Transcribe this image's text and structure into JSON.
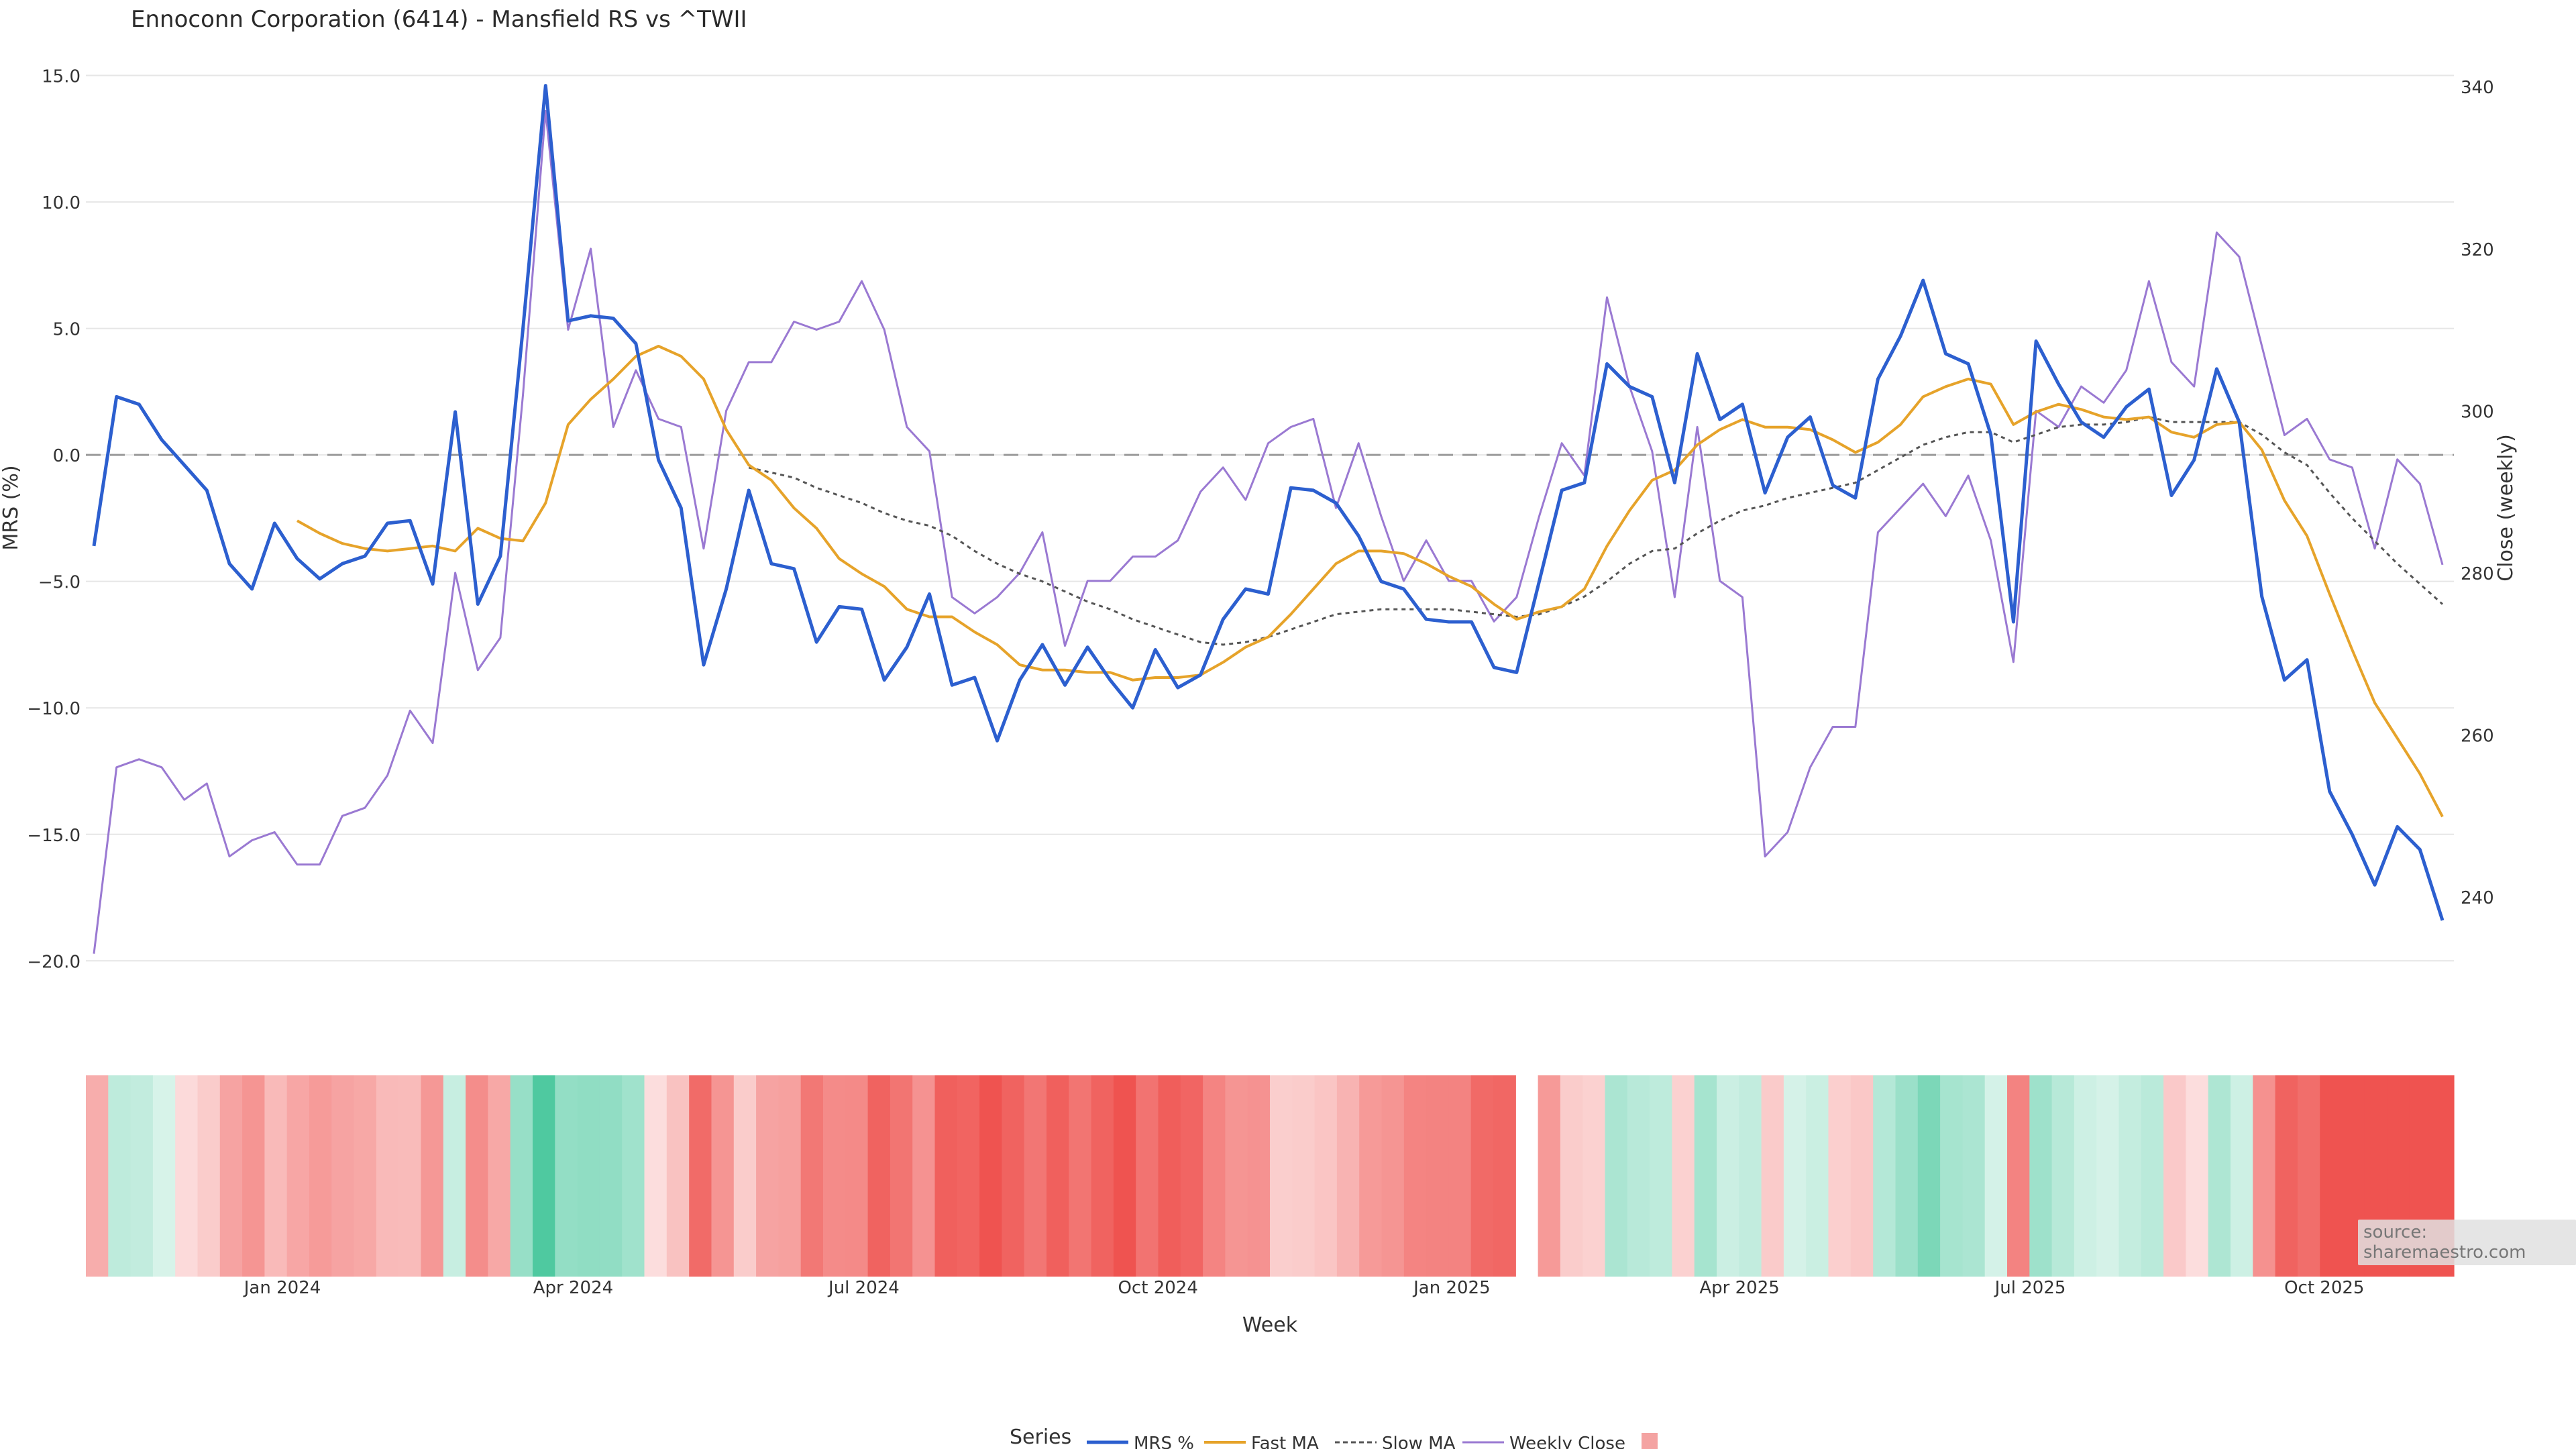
{
  "title": "Ennoconn Corporation (6414) - Mansfield RS vs ^TWII",
  "source_text": "source: sharemaestro.com",
  "colors": {
    "mrs": "#2c5fcf",
    "fast": "#e6a32a",
    "slow": "#555555",
    "close": "#9a79d2",
    "zero": "#9a9a9a",
    "grid": "#e6e6e6",
    "neg": "#ef5350",
    "pos": "#4fc9a0"
  },
  "legend": {
    "title": "Series",
    "items": [
      "MRS %",
      "Fast MA",
      "Slow MA",
      "Weekly Close",
      ""
    ]
  },
  "chart_data": {
    "type": "line",
    "title": "Ennoconn Corporation (6414) - Mansfield RS vs ^TWII",
    "xlabel": "Week",
    "ylabel_left": "MRS (%)",
    "ylabel_right": "Close (weekly)",
    "ylim_left": [
      -21,
      15.2
    ],
    "ylim_right": [
      229,
      342
    ],
    "y_ticks_left": [
      15,
      10,
      5,
      0,
      -5,
      -10,
      -15,
      -20
    ],
    "y_tick_labels_left": [
      "15.0",
      "10.0",
      "5.0",
      "0.0",
      "−5.0",
      "−10.0",
      "−15.0",
      "−20.0"
    ],
    "y_ticks_right": [
      340,
      320,
      300,
      280,
      260,
      240
    ],
    "y_tick_labels_right": [
      "340",
      "320",
      "300",
      "280",
      "260",
      "240"
    ],
    "x_start_date": "2023-11-03",
    "x_end_date": "2025-11-07",
    "x_ticks": [
      "2024-01-01",
      "2024-04-01",
      "2024-07-01",
      "2024-10-01",
      "2025-01-01",
      "2025-04-01",
      "2025-07-01",
      "2025-10-01"
    ],
    "x_tick_labels": [
      "Jan 2024",
      "Apr 2024",
      "Jul 2024",
      "Oct 2024",
      "Jan 2025",
      "Apr 2025",
      "Jul 2025",
      "Oct 2025"
    ],
    "grid": true,
    "legend_position": "bottom",
    "series": [
      {
        "name": "MRS %",
        "line": "solid",
        "axis": "left",
        "values": [
          -3.6,
          2.3,
          2.0,
          0.6,
          -0.4,
          -1.4,
          -4.3,
          -5.3,
          -2.7,
          -4.1,
          -4.9,
          -4.3,
          -4.0,
          -2.7,
          -2.6,
          -5.1,
          1.7,
          -5.9,
          -4.0,
          5.0,
          14.6,
          5.3,
          5.5,
          5.4,
          4.4,
          -0.2,
          -2.1,
          -8.3,
          -5.3,
          -1.4,
          -4.3,
          -4.5,
          -7.4,
          -6.0,
          -6.1,
          -8.9,
          -7.6,
          -5.5,
          -9.1,
          -8.8,
          -11.3,
          -8.9,
          -7.5,
          -9.1,
          -7.6,
          -8.9,
          -10.0,
          -7.7,
          -9.2,
          -8.7,
          -6.5,
          -5.3,
          -5.5,
          -1.3,
          -1.4,
          -1.9,
          -3.2,
          -5.0,
          -5.3,
          -6.5,
          -6.6,
          -6.6,
          -8.4,
          -8.6,
          -5.0,
          -1.4,
          -1.1,
          3.6,
          2.7,
          2.3,
          -1.1,
          4.0,
          1.4,
          2.0,
          -1.5,
          0.7,
          1.5,
          -1.2,
          -1.7,
          3.0,
          4.7,
          6.9,
          4.0,
          3.6,
          0.8,
          -6.6,
          4.5,
          2.8,
          1.3,
          0.7,
          1.9,
          2.6,
          -1.6,
          -0.2,
          3.4,
          1.3,
          -5.6,
          -8.9,
          -8.1,
          -13.3,
          -15.0,
          -17.0,
          -14.7,
          -15.6,
          -18.4
        ]
      },
      {
        "name": "Fast MA",
        "line": "solid",
        "axis": "left",
        "values": [
          null,
          null,
          null,
          null,
          null,
          null,
          null,
          null,
          null,
          -2.6,
          -3.1,
          -3.5,
          -3.7,
          -3.8,
          -3.7,
          -3.6,
          -3.8,
          -2.9,
          -3.3,
          -3.4,
          -1.9,
          1.2,
          2.2,
          3.0,
          3.9,
          4.3,
          3.9,
          3.0,
          1.0,
          -0.4,
          -1.0,
          -2.1,
          -2.9,
          -4.1,
          -4.7,
          -5.2,
          -6.1,
          -6.4,
          -6.4,
          -7.0,
          -7.5,
          -8.3,
          -8.5,
          -8.5,
          -8.6,
          -8.6,
          -8.9,
          -8.8,
          -8.8,
          -8.7,
          -8.2,
          -7.6,
          -7.2,
          -6.3,
          -5.3,
          -4.3,
          -3.8,
          -3.8,
          -3.9,
          -4.3,
          -4.8,
          -5.2,
          -5.9,
          -6.5,
          -6.2,
          -6.0,
          -5.3,
          -3.6,
          -2.2,
          -1.0,
          -0.6,
          0.4,
          1.0,
          1.4,
          1.1,
          1.1,
          1.0,
          0.6,
          0.1,
          0.5,
          1.2,
          2.3,
          2.7,
          3.0,
          2.8,
          1.2,
          1.7,
          2.0,
          1.8,
          1.5,
          1.4,
          1.5,
          0.9,
          0.7,
          1.2,
          1.3,
          0.2,
          -1.8,
          -3.2,
          -5.5,
          -7.7,
          -9.8,
          -11.2,
          -12.6,
          -14.3
        ]
      },
      {
        "name": "Slow MA",
        "line": "dashed",
        "axis": "left",
        "values": [
          null,
          null,
          null,
          null,
          null,
          null,
          null,
          null,
          null,
          null,
          null,
          null,
          null,
          null,
          null,
          null,
          null,
          null,
          null,
          null,
          null,
          null,
          null,
          null,
          null,
          null,
          null,
          null,
          null,
          -0.5,
          -0.7,
          -0.9,
          -1.3,
          -1.6,
          -1.9,
          -2.3,
          -2.6,
          -2.8,
          -3.2,
          -3.8,
          -4.3,
          -4.7,
          -5.0,
          -5.4,
          -5.8,
          -6.1,
          -6.5,
          -6.8,
          -7.1,
          -7.4,
          -7.5,
          -7.4,
          -7.2,
          -6.9,
          -6.6,
          -6.3,
          -6.2,
          -6.1,
          -6.1,
          -6.1,
          -6.1,
          -6.2,
          -6.3,
          -6.4,
          -6.3,
          -6.0,
          -5.6,
          -5.0,
          -4.3,
          -3.8,
          -3.7,
          -3.1,
          -2.6,
          -2.2,
          -2.0,
          -1.7,
          -1.5,
          -1.3,
          -1.1,
          -0.6,
          -0.1,
          0.4,
          0.7,
          0.9,
          0.9,
          0.5,
          0.8,
          1.1,
          1.2,
          1.2,
          1.3,
          1.5,
          1.3,
          1.3,
          1.3,
          1.3,
          0.8,
          0.1,
          -0.4,
          -1.5,
          -2.5,
          -3.4,
          -4.3,
          -5.1,
          -5.9
        ]
      },
      {
        "name": "Weekly Close",
        "line": "solid",
        "axis": "right",
        "values": [
          233,
          256,
          257,
          256,
          252,
          254,
          245,
          247,
          248,
          244,
          244,
          250,
          251,
          255,
          263,
          259,
          280,
          268,
          272,
          302,
          337,
          310,
          320,
          298,
          305,
          299,
          298,
          283,
          300,
          306,
          306,
          311,
          310,
          311,
          316,
          310,
          298,
          295,
          277,
          275,
          277,
          280,
          285,
          271,
          279,
          279,
          282,
          282,
          284,
          290,
          293,
          289,
          296,
          298,
          299,
          288,
          296,
          287,
          279,
          284,
          279,
          279,
          274,
          277,
          287,
          296,
          292,
          314,
          303,
          295,
          277,
          298,
          279,
          277,
          245,
          248,
          256,
          261,
          261,
          285,
          288,
          291,
          287,
          292,
          284,
          269,
          300,
          298,
          303,
          301,
          305,
          316,
          306,
          303,
          322,
          319,
          308,
          297,
          299,
          294,
          293,
          283,
          294,
          291,
          281
        ]
      }
    ],
    "heatmap": {
      "colorscale_negative": "#ef5350",
      "colorscale_positive": "#4fc9a0",
      "values": [
        -3.6,
        2.3,
        2.0,
        0.6,
        -0.4,
        -1.4,
        -4.3,
        -5.3,
        -2.7,
        -4.1,
        -4.9,
        -4.3,
        -4.0,
        -2.7,
        -2.6,
        -5.1,
        1.7,
        -5.9,
        -4.0,
        5.0,
        14.6,
        5.3,
        5.5,
        5.4,
        4.4,
        -0.2,
        -2.1,
        -8.3,
        -5.3,
        -1.4,
        -4.3,
        -4.5,
        -7.4,
        -6.0,
        -6.1,
        -8.9,
        -7.6,
        -5.5,
        -9.1,
        -8.8,
        -11.3,
        -8.9,
        -7.5,
        -9.1,
        -7.6,
        -8.9,
        -10.0,
        -7.7,
        -9.2,
        -8.7,
        -6.5,
        -5.3,
        -5.5,
        -1.3,
        -1.4,
        -1.9,
        -3.2,
        -5.0,
        -5.3,
        -6.5,
        -6.6,
        -6.6,
        -8.4,
        -8.6,
        null,
        -5.0,
        -1.4,
        -1.1,
        3.6,
        2.7,
        2.3,
        -1.1,
        4.0,
        1.4,
        2.0,
        -1.5,
        0.7,
        1.5,
        -1.2,
        -1.7,
        3.0,
        4.7,
        6.9,
        4.0,
        3.6,
        0.8,
        -6.6,
        4.5,
        2.8,
        1.3,
        0.7,
        1.9,
        2.6,
        -1.6,
        -0.2,
        3.4,
        1.3,
        -5.6,
        -8.9,
        -8.1,
        -13.3,
        -15.0,
        -17.0,
        -14.7,
        -15.6,
        -18.4
      ]
    }
  }
}
